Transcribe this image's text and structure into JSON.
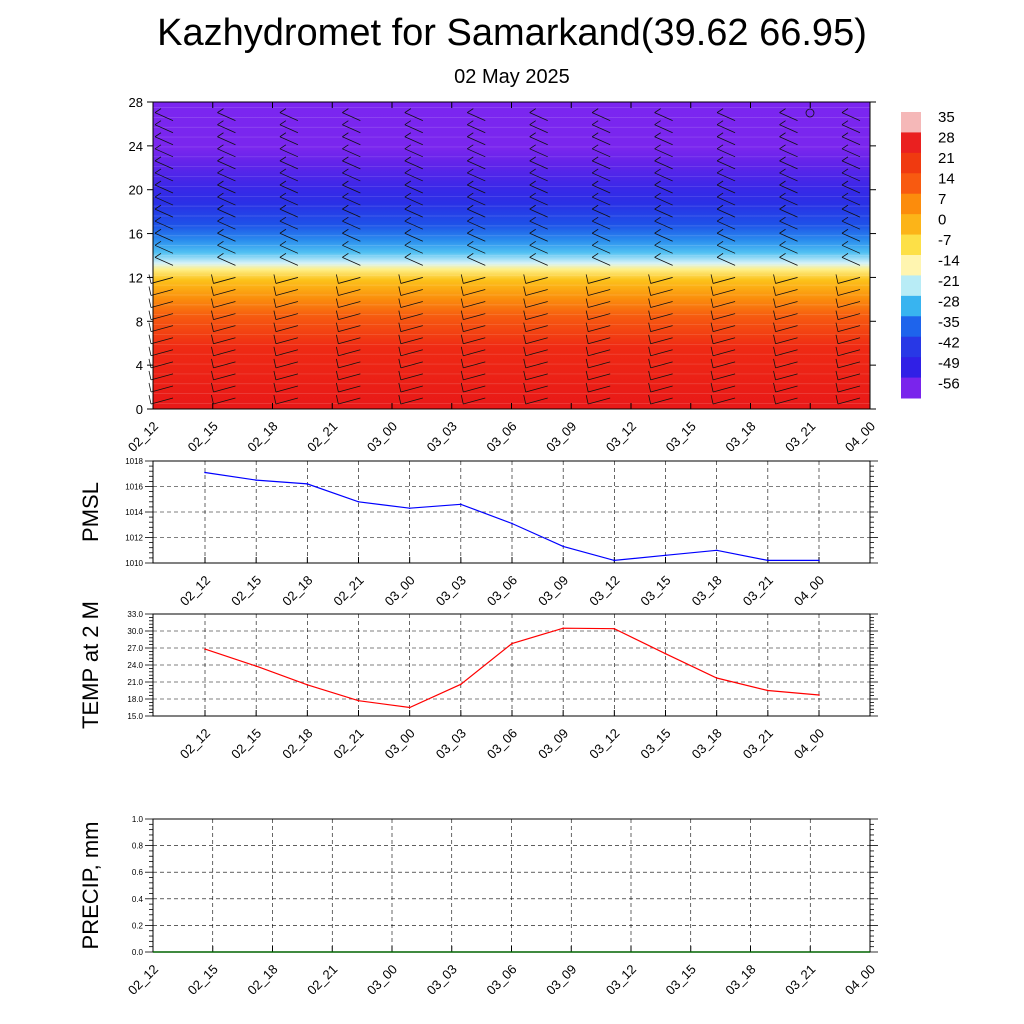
{
  "title": "Kazhydromet for Samarkand(39.62 66.95)",
  "subtitle": "02 May 2025",
  "colors": {
    "pmsl_line": "#0000ff",
    "temp_line": "#ff0000",
    "precip_line": "#006400",
    "grid": "#000000"
  },
  "chart_data": [
    {
      "type": "heatmap",
      "name": "cross-section",
      "xlabel": "",
      "ylabel": "",
      "x_ticks": [
        "02_12",
        "02_15",
        "02_18",
        "02_21",
        "03_00",
        "03_03",
        "03_06",
        "03_09",
        "03_12",
        "03_15",
        "03_18",
        "03_21",
        "04_00"
      ],
      "y_ticks": [
        0,
        4,
        8,
        12,
        16,
        20,
        24,
        28
      ],
      "ylim": [
        0,
        28
      ],
      "colorbar_labels": [
        "35",
        "28",
        "21",
        "14",
        "7",
        "0",
        "-7",
        "-14",
        "-21",
        "-28",
        "-35",
        "-42",
        "-49",
        "-56"
      ],
      "colorbar_colors": [
        "#f5b8b8",
        "#ea2020",
        "#f03a10",
        "#f85a10",
        "#fc8c0c",
        "#fcb418",
        "#fde047",
        "#fff5b0",
        "#b8ecf6",
        "#38b4f0",
        "#1e64ec",
        "#2838e6",
        "#3020e6",
        "#7a24ec"
      ],
      "wind_barbs": true
    },
    {
      "type": "line",
      "name": "PMSL",
      "ylabel": "PMSL",
      "categories": [
        "02_12",
        "02_15",
        "02_18",
        "02_21",
        "03_00",
        "03_03",
        "03_06",
        "03_09",
        "03_12",
        "03_15",
        "03_18",
        "03_21",
        "04_00"
      ],
      "values": [
        1017.1,
        1016.5,
        1016.2,
        1014.8,
        1014.3,
        1014.6,
        1013.1,
        1011.3,
        1010.2,
        1010.6,
        1011.0,
        1010.2,
        1010.2
      ],
      "ylim": [
        1010,
        1018
      ],
      "y_ticks": [
        "1010",
        "1012",
        "1014",
        "1016",
        "1018"
      ],
      "grid": true
    },
    {
      "type": "line",
      "name": "TEMP at 2 M",
      "ylabel": "TEMP at 2 M",
      "categories": [
        "02_12",
        "02_15",
        "02_18",
        "02_21",
        "03_00",
        "03_03",
        "03_06",
        "03_09",
        "03_12",
        "03_15",
        "03_18",
        "03_21",
        "04_00"
      ],
      "values": [
        26.8,
        23.8,
        20.5,
        17.7,
        16.5,
        20.6,
        27.8,
        30.5,
        30.4,
        26.0,
        21.7,
        19.5,
        18.7
      ],
      "ylim": [
        15,
        33
      ],
      "y_ticks": [
        "15.0",
        "18.0",
        "21.0",
        "24.0",
        "27.0",
        "30.0",
        "33.0"
      ],
      "grid": true
    },
    {
      "type": "line",
      "name": "PRECIP, mm",
      "ylabel": "PRECIP, mm",
      "categories": [
        "02_12",
        "02_15",
        "02_18",
        "02_21",
        "03_00",
        "03_03",
        "03_06",
        "03_09",
        "03_12",
        "03_15",
        "03_18",
        "03_21",
        "04_00"
      ],
      "values": [
        0,
        0,
        0,
        0,
        0,
        0,
        0,
        0,
        0,
        0,
        0,
        0,
        0
      ],
      "ylim": [
        0,
        1
      ],
      "y_ticks": [
        "0.0",
        "0.2",
        "0.4",
        "0.6",
        "0.8",
        "1.0"
      ],
      "grid": true
    }
  ]
}
